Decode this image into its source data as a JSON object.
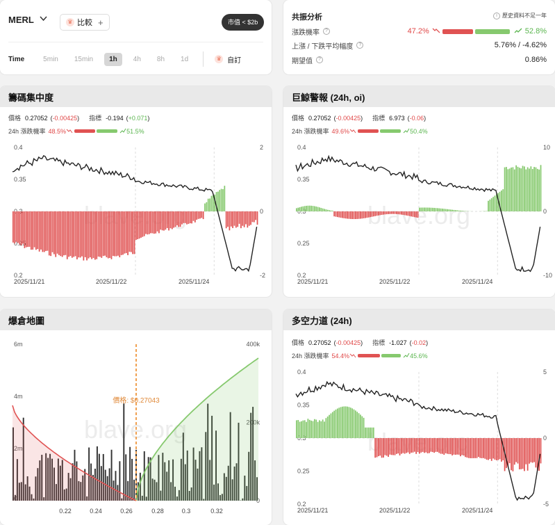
{
  "top_left": {
    "ticker": "MERL",
    "compare_label": "比較",
    "mcap_badge": "市值 < $2b",
    "time_label": "Time",
    "timeframes": [
      "5min",
      "15min",
      "1h",
      "4h",
      "8h",
      "1d"
    ],
    "active_timeframe": "1h",
    "custom_label": "自訂"
  },
  "resonance": {
    "title": "共振分析",
    "note": "歷史資料不足一年",
    "row1_label": "漲跌機率",
    "row1_down": "47.2%",
    "row1_up": "52.8%",
    "row2_label": "上漲 / 下跌平均幅度",
    "row2_value": "5.76% / -4.62%",
    "row3_label": "期望值",
    "row3_value": "0.86%"
  },
  "chip": {
    "title": "籌碼集中度",
    "price_label": "價格",
    "price": "0.27052",
    "price_change": "-0.00425",
    "indicator_label": "指標",
    "indicator": "-0.194",
    "indicator_change": "+0.071",
    "prob_label": "24h 漲跌機率",
    "prob_down": "48.5%",
    "prob_up": "51.5%",
    "y_left": [
      "0.4",
      "0.35",
      "0.3",
      "0.25",
      "0.2"
    ],
    "y_right": [
      "2",
      "0",
      "-2"
    ],
    "x_labels": [
      "2025/11/21",
      "2025/11/22",
      "2025/11/24"
    ],
    "watermark": "blave.org"
  },
  "whale": {
    "title": "巨鯨警報 (24h, oi)",
    "price_label": "價格",
    "price": "0.27052",
    "price_change": "-0.00425",
    "indicator_label": "指標",
    "indicator": "6.973",
    "indicator_change": "-0.06",
    "prob_label": "24h 漲跌機率",
    "prob_down": "49.6%",
    "prob_up": "50.4%",
    "y_left": [
      "0.4",
      "0.35",
      "0.3",
      "0.25",
      "0.2"
    ],
    "y_right": [
      "10",
      "0",
      "-10"
    ],
    "x_labels": [
      "2025/11/21",
      "2025/11/22",
      "2025/11/24"
    ],
    "watermark": "blave.org"
  },
  "liquidation": {
    "title": "爆倉地圖",
    "y_left": [
      "6m",
      "4m",
      "2m",
      "0"
    ],
    "y_right": [
      "400k",
      "200k",
      "0"
    ],
    "x_labels": [
      "0.22",
      "0.24",
      "0.26",
      "0.28",
      "0.3",
      "0.32"
    ],
    "price_marker": "價格: $0.27043",
    "watermark": "blave.org"
  },
  "longshort": {
    "title": "多空力道 (24h)",
    "price_label": "價格",
    "price": "0.27052",
    "price_change": "-0.00425",
    "indicator_label": "指標",
    "indicator": "-1.027",
    "indicator_change": "-0.02",
    "prob_label": "24h 漲跌機率",
    "prob_down": "54.4%",
    "prob_up": "45.6%",
    "y_left": [
      "0.4",
      "0.35",
      "0.3",
      "0.25",
      "0.2"
    ],
    "y_right": [
      "5",
      "0",
      "-5"
    ],
    "x_labels": [
      "2025/11/21",
      "2025/11/22",
      "2025/11/24"
    ],
    "watermark": "blave.org"
  },
  "colors": {
    "up": "#86c96e",
    "down": "#e05252",
    "price_line": "#222222",
    "marker": "#f0a050"
  }
}
